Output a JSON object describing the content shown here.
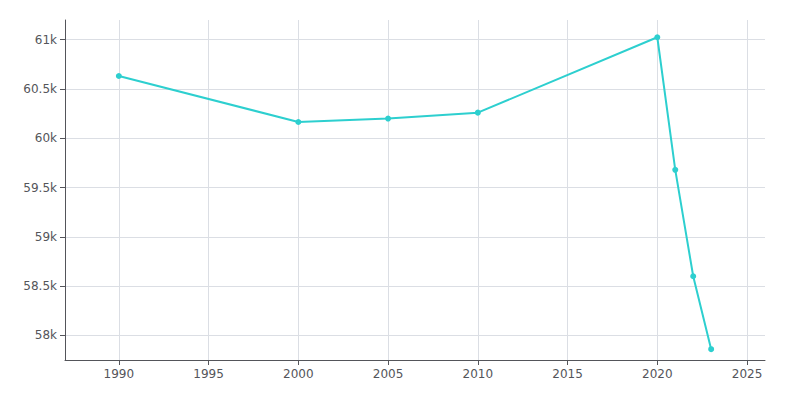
{
  "chart_data": {
    "type": "line",
    "x": [
      1990,
      2000,
      2005,
      2010,
      2020,
      2021,
      2022,
      2023
    ],
    "values": [
      60632,
      60165,
      60200,
      60260,
      61025,
      59680,
      58600,
      57860
    ],
    "color": "#2dcfcf",
    "marker": "circle",
    "xlim": [
      1987,
      2026
    ],
    "ylim": [
      57750,
      61200
    ],
    "xticks": [
      1990,
      1995,
      2000,
      2005,
      2010,
      2015,
      2020,
      2025
    ],
    "yticks": [
      {
        "value": 58000,
        "label": "58k"
      },
      {
        "value": 58500,
        "label": "58.5k"
      },
      {
        "value": 59000,
        "label": "59k"
      },
      {
        "value": 59500,
        "label": "59.5k"
      },
      {
        "value": 60000,
        "label": "60k"
      },
      {
        "value": 60500,
        "label": "60.5k"
      },
      {
        "value": 61000,
        "label": "61k"
      }
    ],
    "grid": true
  }
}
